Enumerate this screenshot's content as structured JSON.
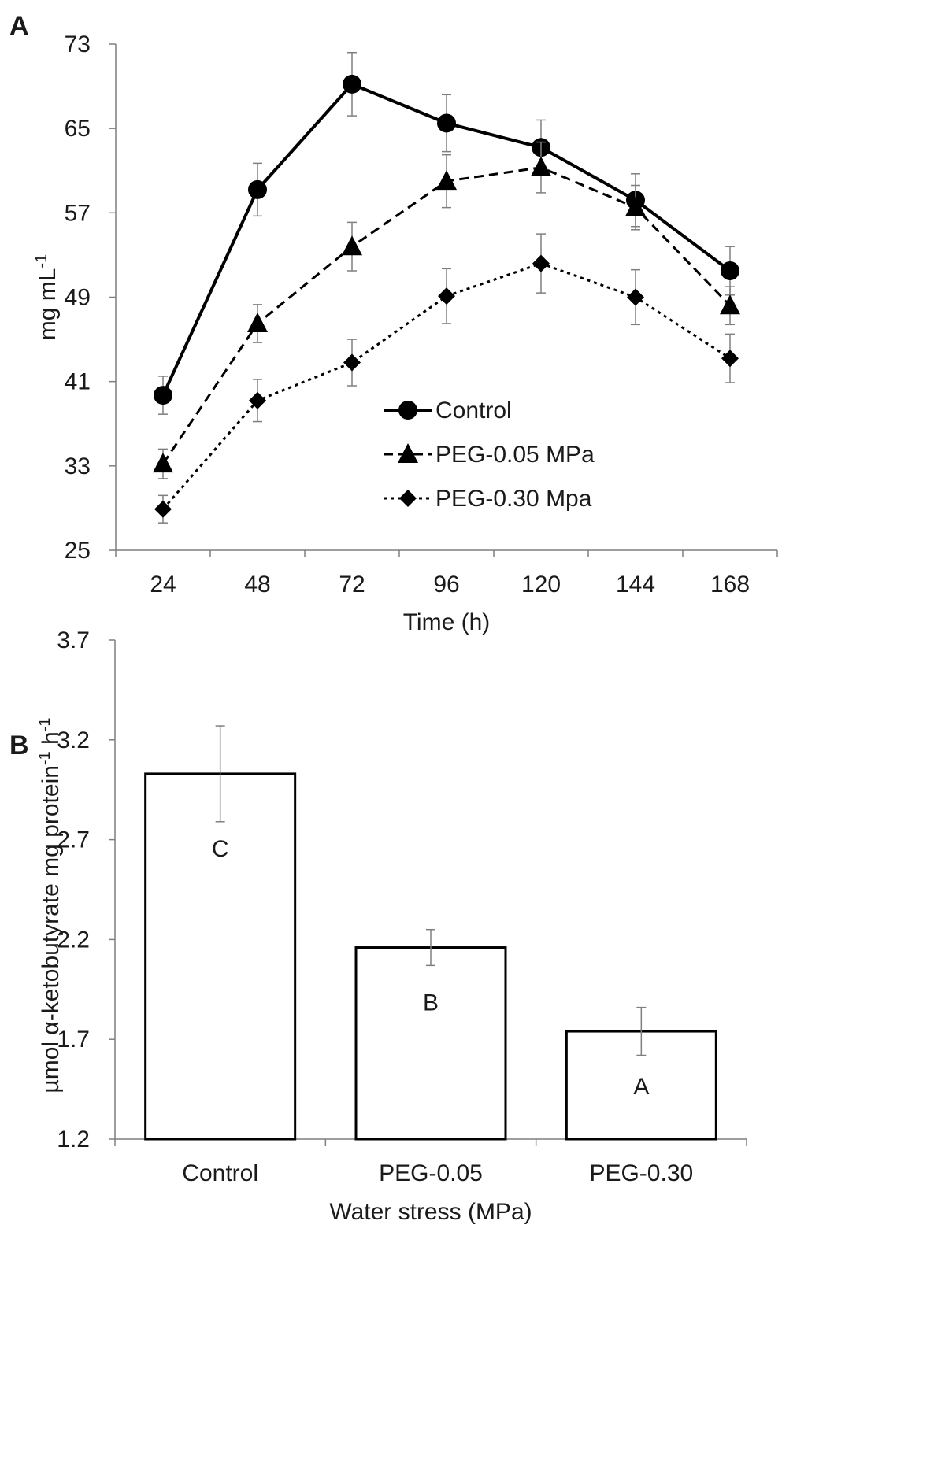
{
  "figure": {
    "panels": [
      {
        "label": "A"
      },
      {
        "label": "B"
      }
    ]
  },
  "chart_data": [
    {
      "type": "line",
      "panel": "A",
      "title": "",
      "xlabel": "Time (h)",
      "ylabel": "mg mL",
      "ylabel_sup": "-1",
      "categories": [
        "24",
        "48",
        "72",
        "96",
        "120",
        "144",
        "168"
      ],
      "ylim": [
        25,
        73
      ],
      "yticks": [
        25,
        33,
        41,
        49,
        57,
        65,
        73
      ],
      "grid": false,
      "legend_position": "center-right",
      "series": [
        {
          "name": "Control",
          "marker": "circle",
          "line_style": "solid",
          "values": [
            39.7,
            59.2,
            69.2,
            65.5,
            63.2,
            58.2,
            51.5
          ],
          "errors": [
            1.8,
            2.5,
            3.0,
            2.7,
            2.6,
            2.5,
            2.3
          ]
        },
        {
          "name": "PEG-0.05 MPa",
          "marker": "triangle",
          "line_style": "dashed",
          "values": [
            33.2,
            46.5,
            53.8,
            60.0,
            61.3,
            57.5,
            48.2
          ],
          "errors": [
            1.4,
            1.8,
            2.3,
            2.5,
            2.4,
            2.1,
            1.8
          ]
        },
        {
          "name": "PEG-0.30 Mpa",
          "marker": "diamond",
          "line_style": "dotted",
          "values": [
            28.9,
            39.2,
            42.8,
            49.1,
            52.2,
            49.0,
            43.2
          ],
          "errors": [
            1.3,
            2.0,
            2.2,
            2.6,
            2.8,
            2.6,
            2.3
          ]
        }
      ]
    },
    {
      "type": "bar",
      "panel": "B",
      "title": "",
      "xlabel": "Water stress (MPa)",
      "ylabel": "µmol α-ketobutyrate mg protein",
      "ylabel_sup1": "-1",
      "ylabel_mid": " h",
      "ylabel_sup2": "-1",
      "categories": [
        "Control",
        "PEG-0.05",
        "PEG-0.30"
      ],
      "values": [
        3.03,
        2.16,
        1.74
      ],
      "errors": [
        0.24,
        0.09,
        0.12
      ],
      "letters": [
        "C",
        "B",
        "A"
      ],
      "ylim": [
        1.2,
        3.7
      ],
      "yticks": [
        "1.2",
        "1.7",
        "2.2",
        "2.7",
        "3.2",
        "3.7"
      ],
      "grid": false
    }
  ]
}
